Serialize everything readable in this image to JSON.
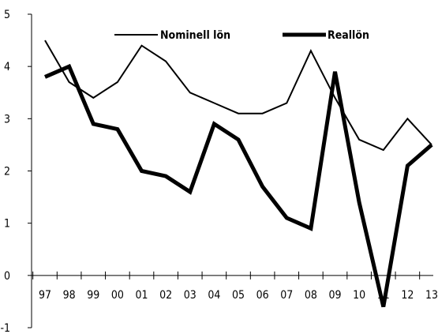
{
  "chart_data": {
    "type": "line",
    "title": "",
    "xlabel": "",
    "ylabel": "",
    "categories": [
      "97",
      "98",
      "99",
      "00",
      "01",
      "02",
      "03",
      "04",
      "05",
      "06",
      "07",
      "08",
      "09",
      "10",
      "11",
      "12",
      "13"
    ],
    "y_ticks": [
      "-1",
      "0",
      "1",
      "2",
      "3",
      "4",
      "5"
    ],
    "ylim": [
      -1,
      5
    ],
    "grid": false,
    "legend_position": "top",
    "series": [
      {
        "name": "Nominell lön",
        "color": "#000000",
        "weight": "thin",
        "values": [
          4.5,
          3.7,
          3.4,
          3.7,
          4.4,
          4.1,
          3.5,
          3.3,
          3.1,
          3.1,
          3.3,
          4.3,
          3.4,
          2.6,
          2.4,
          3.0,
          2.5
        ]
      },
      {
        "name": "Reallön",
        "color": "#000000",
        "weight": "thick",
        "values": [
          3.8,
          4.0,
          2.9,
          2.8,
          2.0,
          1.9,
          1.6,
          2.9,
          2.6,
          1.7,
          1.1,
          0.9,
          3.9,
          1.4,
          -0.6,
          2.1,
          2.5
        ]
      }
    ]
  }
}
